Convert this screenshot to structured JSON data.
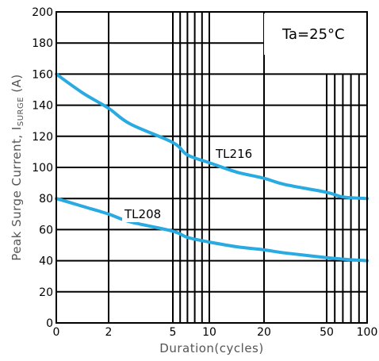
{
  "chart_data": {
    "type": "line",
    "xlabel": "Duration(cycles)",
    "ylabel": "Peak Surge Current, I",
    "ylabel_sub": "SURGE",
    "ylabel_suffix": " (A)",
    "annotation": "Ta=25°C",
    "x_ticks": [
      "0",
      "2",
      "5",
      "10",
      "20",
      "50",
      "100"
    ],
    "y_ticks": [
      "0",
      "20",
      "40",
      "60",
      "80",
      "100",
      "120",
      "140",
      "160",
      "180",
      "200"
    ],
    "ylim": [
      0,
      200
    ],
    "grid": true,
    "line_color": "#29abe2",
    "series": [
      {
        "name": "TL216",
        "x": [
          0,
          1,
          2,
          3,
          5,
          7,
          10,
          15,
          20,
          30,
          50,
          70,
          100
        ],
        "y": [
          160,
          148,
          138,
          128,
          116,
          108,
          103,
          97,
          93,
          89,
          84,
          81,
          80
        ]
      },
      {
        "name": "TL208",
        "x": [
          0,
          1,
          2,
          3,
          5,
          7,
          10,
          15,
          20,
          30,
          50,
          70,
          100
        ],
        "y": [
          80,
          75,
          70,
          65,
          59,
          55,
          52,
          49,
          47,
          45,
          42,
          41,
          40
        ]
      }
    ]
  }
}
